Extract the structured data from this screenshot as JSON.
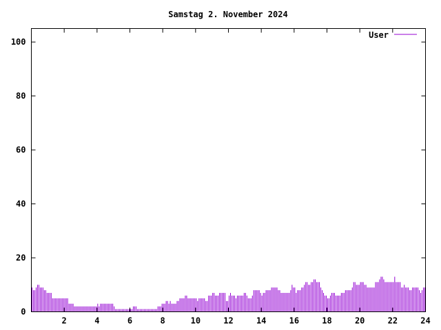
{
  "chart_data": {
    "type": "bar",
    "title": "Samstag 2. November 2024",
    "xlabel": "",
    "ylabel": "",
    "xlim": [
      0,
      24
    ],
    "ylim": [
      0,
      105
    ],
    "x_ticks": [
      2,
      4,
      6,
      8,
      10,
      12,
      14,
      16,
      18,
      20,
      22,
      24
    ],
    "y_ticks": [
      0,
      20,
      40,
      60,
      80,
      100
    ],
    "grid": false,
    "legend_position": "top-right",
    "x_interval_minutes": 5,
    "series": [
      {
        "name": "User",
        "color": "#9400d3",
        "values": [
          9,
          8,
          8,
          9,
          10,
          10,
          9,
          9,
          9,
          8,
          8,
          7,
          7,
          7,
          7,
          5,
          5,
          5,
          5,
          5,
          5,
          5,
          5,
          5,
          5,
          5,
          5,
          3,
          3,
          3,
          3,
          2,
          2,
          2,
          2,
          2,
          2,
          2,
          2,
          2,
          2,
          2,
          2,
          2,
          2,
          2,
          2,
          2,
          3,
          2,
          3,
          3,
          3,
          3,
          3,
          3,
          3,
          3,
          3,
          3,
          2,
          1,
          1,
          1,
          1,
          1,
          1,
          1,
          1,
          1,
          1,
          1,
          1,
          1,
          2,
          2,
          2,
          1,
          1,
          1,
          1,
          1,
          1,
          1,
          1,
          1,
          1,
          1,
          1,
          1,
          1,
          1,
          2,
          2,
          2,
          3,
          3,
          3,
          4,
          4,
          3,
          4,
          3,
          3,
          3,
          3,
          4,
          4,
          5,
          5,
          5,
          5,
          6,
          6,
          5,
          5,
          5,
          5,
          5,
          5,
          5,
          4,
          5,
          5,
          5,
          5,
          5,
          4,
          4,
          6,
          6,
          6,
          7,
          7,
          6,
          6,
          6,
          7,
          7,
          7,
          7,
          7,
          4,
          4,
          6,
          7,
          6,
          6,
          6,
          5,
          6,
          6,
          6,
          6,
          6,
          7,
          7,
          6,
          5,
          5,
          5,
          6,
          8,
          8,
          8,
          8,
          8,
          7,
          6,
          7,
          7,
          8,
          8,
          8,
          8,
          9,
          9,
          9,
          9,
          9,
          8,
          8,
          7,
          7,
          7,
          7,
          7,
          7,
          7,
          8,
          10,
          9,
          9,
          7,
          8,
          8,
          8,
          9,
          9,
          10,
          11,
          11,
          10,
          10,
          11,
          11,
          12,
          12,
          11,
          11,
          11,
          9,
          8,
          7,
          6,
          6,
          5,
          5,
          6,
          7,
          7,
          7,
          6,
          6,
          6,
          6,
          7,
          7,
          7,
          8,
          8,
          8,
          8,
          8,
          9,
          11,
          11,
          10,
          10,
          10,
          11,
          11,
          11,
          10,
          10,
          9,
          9,
          9,
          9,
          9,
          9,
          11,
          11,
          11,
          12,
          13,
          13,
          12,
          11,
          11,
          11,
          11,
          11,
          11,
          11,
          13,
          11,
          11,
          11,
          11,
          9,
          9,
          10,
          9,
          9,
          9,
          8,
          8,
          9,
          9,
          9,
          9,
          9,
          8,
          7,
          8,
          9,
          9
        ]
      }
    ]
  }
}
